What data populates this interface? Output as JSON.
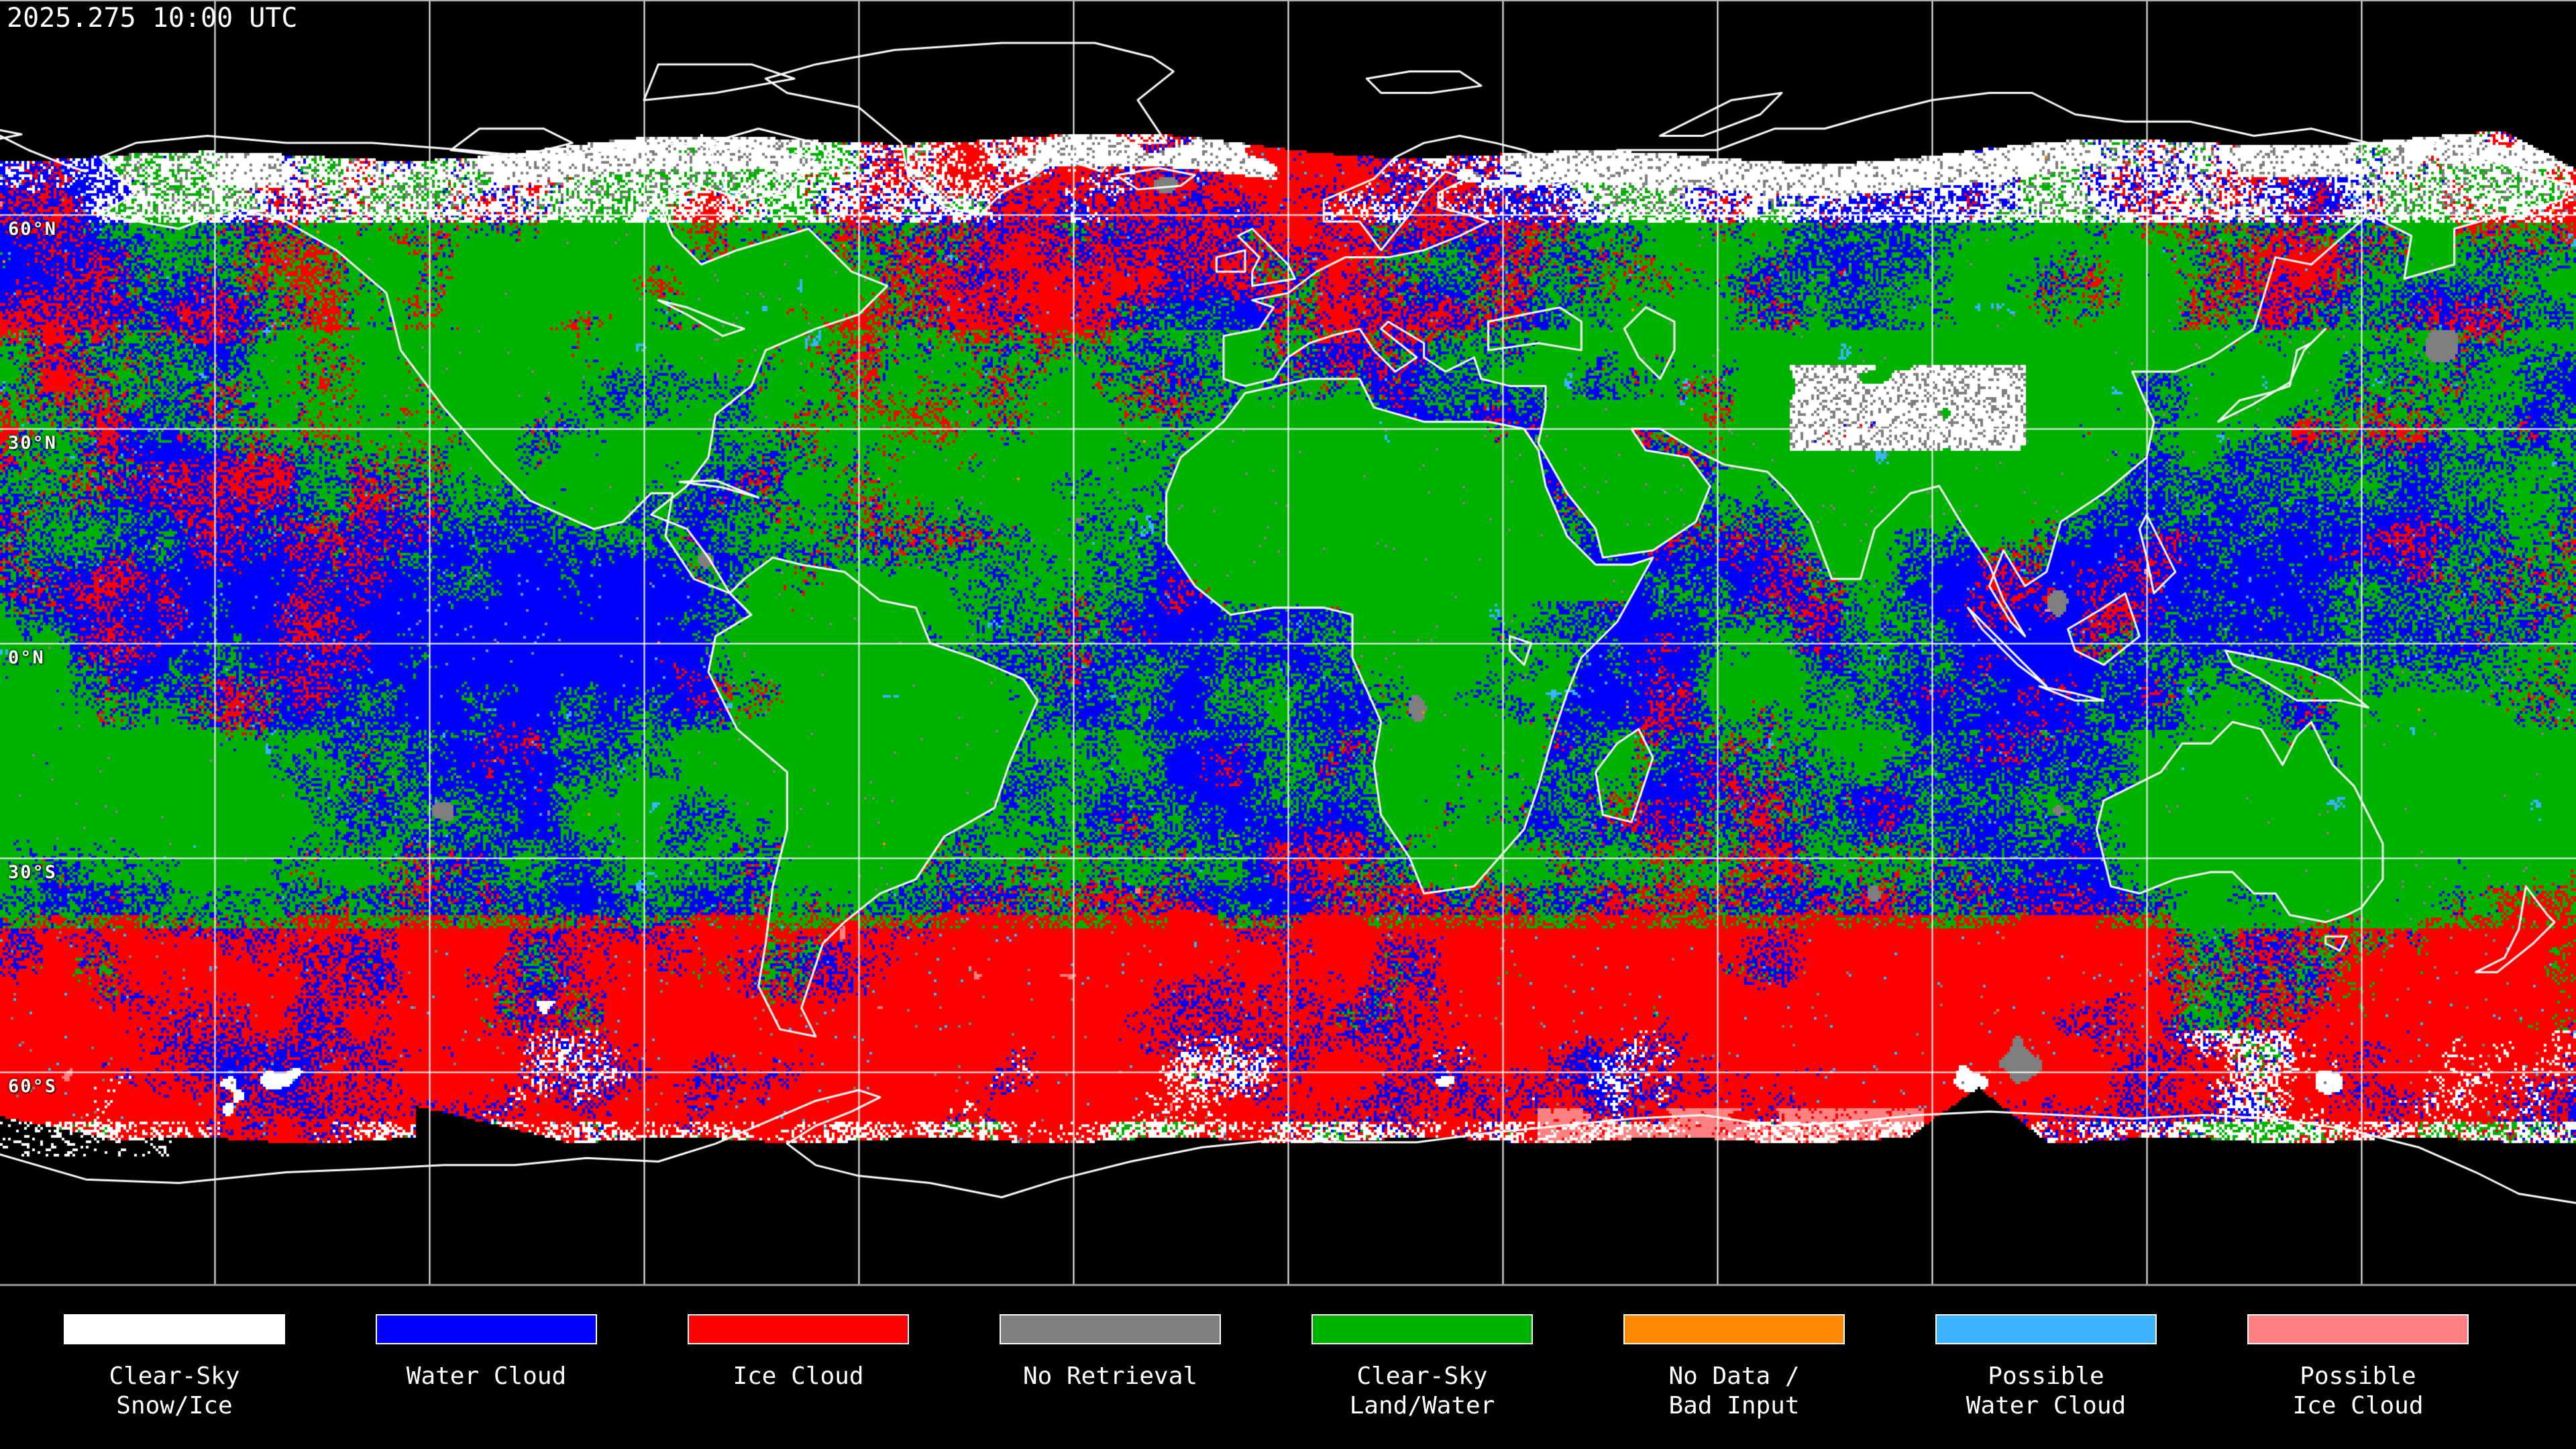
{
  "title_bar": {
    "timestamp": "2025.275 10:00 UTC"
  },
  "map": {
    "latitude_labels": [
      {
        "text": "60°N",
        "lat": 60
      },
      {
        "text": "30°N",
        "lat": 30
      },
      {
        "text": "0°N",
        "lat": 0
      },
      {
        "text": "30°S",
        "lat": -30
      },
      {
        "text": "60°S",
        "lat": -60
      }
    ],
    "grid": {
      "lat_step_deg": 30,
      "lon_step_deg": 30
    },
    "colors": {
      "background": "#000000",
      "gridline": "#ffffff",
      "coastline": "#ffffff",
      "top_border": "#b8b8b8",
      "bottom_border": "#9a9a9a"
    }
  },
  "legend": {
    "items": [
      {
        "lines": [
          "Clear-Sky",
          "Snow/Ice"
        ],
        "color": "#ffffff"
      },
      {
        "lines": [
          "Water Cloud"
        ],
        "color": "#0000ff"
      },
      {
        "lines": [
          "Ice Cloud"
        ],
        "color": "#ff0000"
      },
      {
        "lines": [
          "No Retrieval"
        ],
        "color": "#7f7f7f"
      },
      {
        "lines": [
          "Clear-Sky",
          "Land/Water"
        ],
        "color": "#00b200"
      },
      {
        "lines": [
          "No Data /",
          "Bad Input"
        ],
        "color": "#ff8800"
      },
      {
        "lines": [
          "Possible",
          "Water Cloud"
        ],
        "color": "#3bb3ff"
      },
      {
        "lines": [
          "Possible",
          "Ice Cloud"
        ],
        "color": "#ff8080"
      }
    ]
  }
}
